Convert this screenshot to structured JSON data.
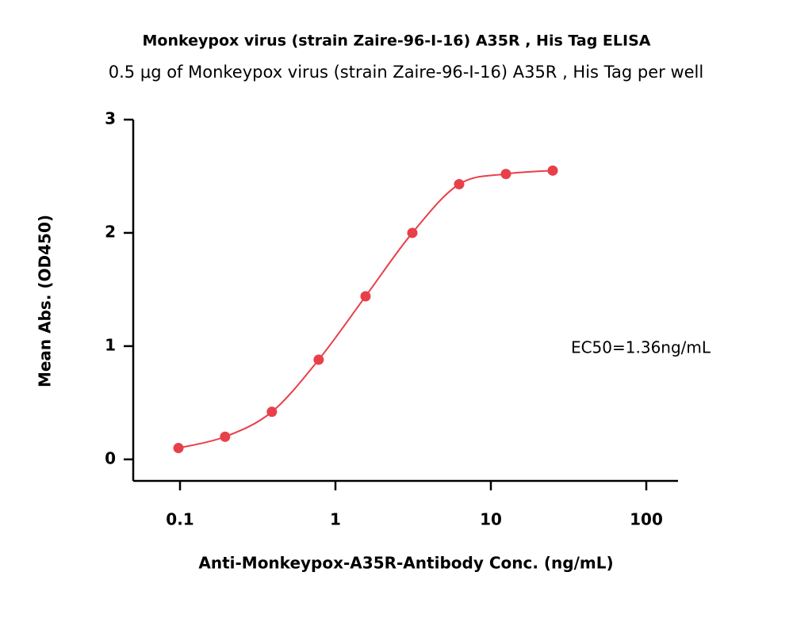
{
  "chart_data": {
    "type": "scatter",
    "title": "Monkeypox virus (strain Zaire-96-I-16) A35R , His Tag ELISA",
    "subtitle": "0.5 μg of Monkeypox virus (strain Zaire-96-I-16) A35R , His Tag per well",
    "x_label": "Anti-Monkeypox-A35R-Antibody Conc. (ng/mL)",
    "y_label": "Mean Abs. (OD450)",
    "annotation": "EC50=1.36ng/mL",
    "x_scale": "log",
    "xlim": [
      0.05,
      160
    ],
    "xticks": [
      0.1,
      1,
      10,
      100
    ],
    "ylim": [
      -0.19,
      3
    ],
    "yticks": [
      0,
      1,
      2,
      3
    ],
    "grid": false,
    "series": [
      {
        "color": "#e8404a",
        "x": [
          0.0977,
          0.195,
          0.39,
          0.78,
          1.5625,
          3.125,
          6.25,
          12.5,
          25
        ],
        "values": [
          0.1,
          0.2,
          0.42,
          0.88,
          1.44,
          2.0,
          2.43,
          2.52,
          2.55
        ]
      }
    ]
  }
}
